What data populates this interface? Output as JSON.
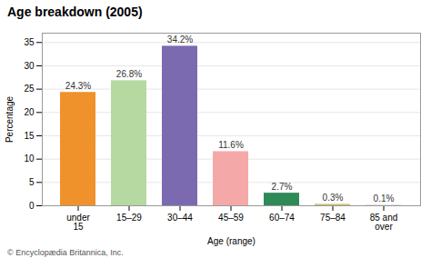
{
  "chart_data": {
    "type": "bar",
    "title": "Age breakdown (2005)",
    "xlabel": "Age (range)",
    "ylabel": "Percentage",
    "caption": "© Encyclopædia Britannica, Inc.",
    "categories": [
      "under\n15",
      "15–29",
      "30–44",
      "45–59",
      "60–74",
      "75–84",
      "85 and\nover"
    ],
    "values": [
      24.3,
      26.8,
      34.2,
      11.6,
      2.7,
      0.3,
      0.1
    ],
    "value_labels": [
      "24.3%",
      "26.8%",
      "34.2%",
      "11.6%",
      "2.7%",
      "0.3%",
      "0.1%"
    ],
    "colors": [
      "#f0922b",
      "#b5d9a0",
      "#7b6ab0",
      "#f4a9a8",
      "#2e8b57",
      "#c8c070",
      "#c8c8c8"
    ],
    "ylim": [
      0,
      37
    ],
    "yticks": [
      0,
      5,
      10,
      15,
      20,
      25,
      30,
      35
    ],
    "grid": true,
    "data_labels": true
  }
}
